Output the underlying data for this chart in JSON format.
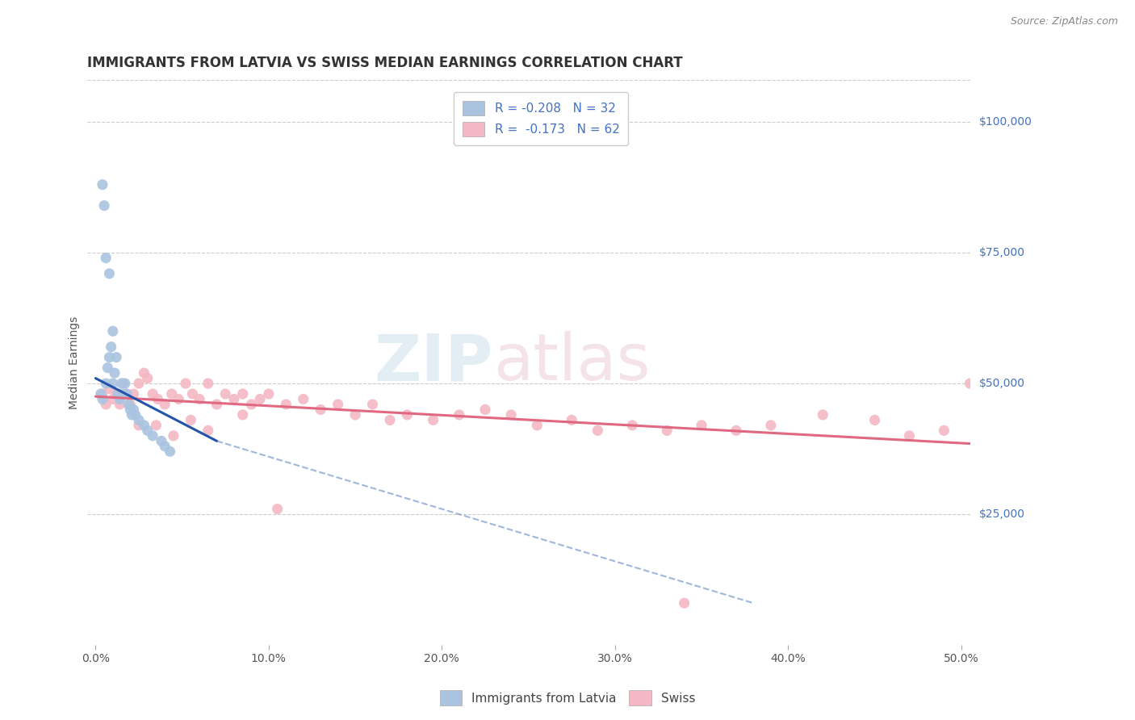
{
  "title": "IMMIGRANTS FROM LATVIA VS SWISS MEDIAN EARNINGS CORRELATION CHART",
  "source": "Source: ZipAtlas.com",
  "ylabel": "Median Earnings",
  "xlabel_ticks": [
    "0.0%",
    "10.0%",
    "20.0%",
    "30.0%",
    "40.0%",
    "50.0%"
  ],
  "xlabel_vals": [
    0.0,
    0.1,
    0.2,
    0.3,
    0.4,
    0.5
  ],
  "ylabel_ticks": [
    "$25,000",
    "$50,000",
    "$75,000",
    "$100,000"
  ],
  "ylabel_vals": [
    25000,
    50000,
    75000,
    100000
  ],
  "xlim": [
    -0.005,
    0.505
  ],
  "ylim": [
    0,
    108000
  ],
  "blue_scatter": {
    "x": [
      0.003,
      0.004,
      0.006,
      0.007,
      0.008,
      0.009,
      0.01,
      0.01,
      0.011,
      0.012,
      0.013,
      0.014,
      0.015,
      0.016,
      0.017,
      0.018,
      0.019,
      0.02,
      0.021,
      0.022,
      0.023,
      0.025,
      0.028,
      0.03,
      0.033,
      0.038,
      0.04,
      0.043,
      0.004,
      0.005,
      0.006,
      0.008
    ],
    "y": [
      48000,
      47000,
      50000,
      53000,
      55000,
      57000,
      60000,
      50000,
      52000,
      55000,
      48000,
      47000,
      50000,
      48000,
      50000,
      48000,
      46000,
      45000,
      44000,
      45000,
      44000,
      43000,
      42000,
      41000,
      40000,
      39000,
      38000,
      37000,
      88000,
      84000,
      74000,
      71000
    ],
    "color": "#aac4e0",
    "label": "Immigrants from Latvia",
    "R": "-0.208",
    "N": "32"
  },
  "pink_scatter": {
    "x": [
      0.004,
      0.006,
      0.008,
      0.01,
      0.012,
      0.014,
      0.016,
      0.018,
      0.02,
      0.022,
      0.025,
      0.028,
      0.03,
      0.033,
      0.036,
      0.04,
      0.044,
      0.048,
      0.052,
      0.056,
      0.06,
      0.065,
      0.07,
      0.075,
      0.08,
      0.085,
      0.09,
      0.095,
      0.1,
      0.11,
      0.12,
      0.13,
      0.14,
      0.15,
      0.16,
      0.17,
      0.18,
      0.195,
      0.21,
      0.225,
      0.24,
      0.255,
      0.275,
      0.29,
      0.31,
      0.33,
      0.35,
      0.37,
      0.39,
      0.42,
      0.45,
      0.47,
      0.49,
      0.505,
      0.025,
      0.035,
      0.045,
      0.055,
      0.065,
      0.085,
      0.105,
      0.34
    ],
    "y": [
      48000,
      46000,
      49000,
      47000,
      48000,
      46000,
      50000,
      48000,
      46000,
      48000,
      50000,
      52000,
      51000,
      48000,
      47000,
      46000,
      48000,
      47000,
      50000,
      48000,
      47000,
      50000,
      46000,
      48000,
      47000,
      48000,
      46000,
      47000,
      48000,
      46000,
      47000,
      45000,
      46000,
      44000,
      46000,
      43000,
      44000,
      43000,
      44000,
      45000,
      44000,
      42000,
      43000,
      41000,
      42000,
      41000,
      42000,
      41000,
      42000,
      44000,
      43000,
      40000,
      41000,
      50000,
      42000,
      42000,
      40000,
      43000,
      41000,
      44000,
      26000,
      8000
    ],
    "color": "#f4b8c4",
    "label": "Swiss",
    "R": "-0.173",
    "N": "62"
  },
  "blue_trend_solid": {
    "x": [
      0.0,
      0.07
    ],
    "y": [
      51000,
      39000
    ],
    "color": "#2255aa",
    "linewidth": 2.2
  },
  "blue_trend_dashed": {
    "x": [
      0.07,
      0.38
    ],
    "y": [
      39000,
      8000
    ],
    "color": "#7799cc",
    "linewidth": 1.5,
    "linestyle": "dashed"
  },
  "pink_trend": {
    "x": [
      0.0,
      0.505
    ],
    "y": [
      47500,
      38500
    ],
    "color": "#e06880",
    "linewidth": 2.2
  },
  "watermark_zip": "ZIP",
  "watermark_atlas": "atlas",
  "background_color": "#ffffff",
  "grid_color": "#cccccc",
  "title_fontsize": 12,
  "axis_label_fontsize": 10,
  "tick_fontsize": 10,
  "legend_fontsize": 11
}
